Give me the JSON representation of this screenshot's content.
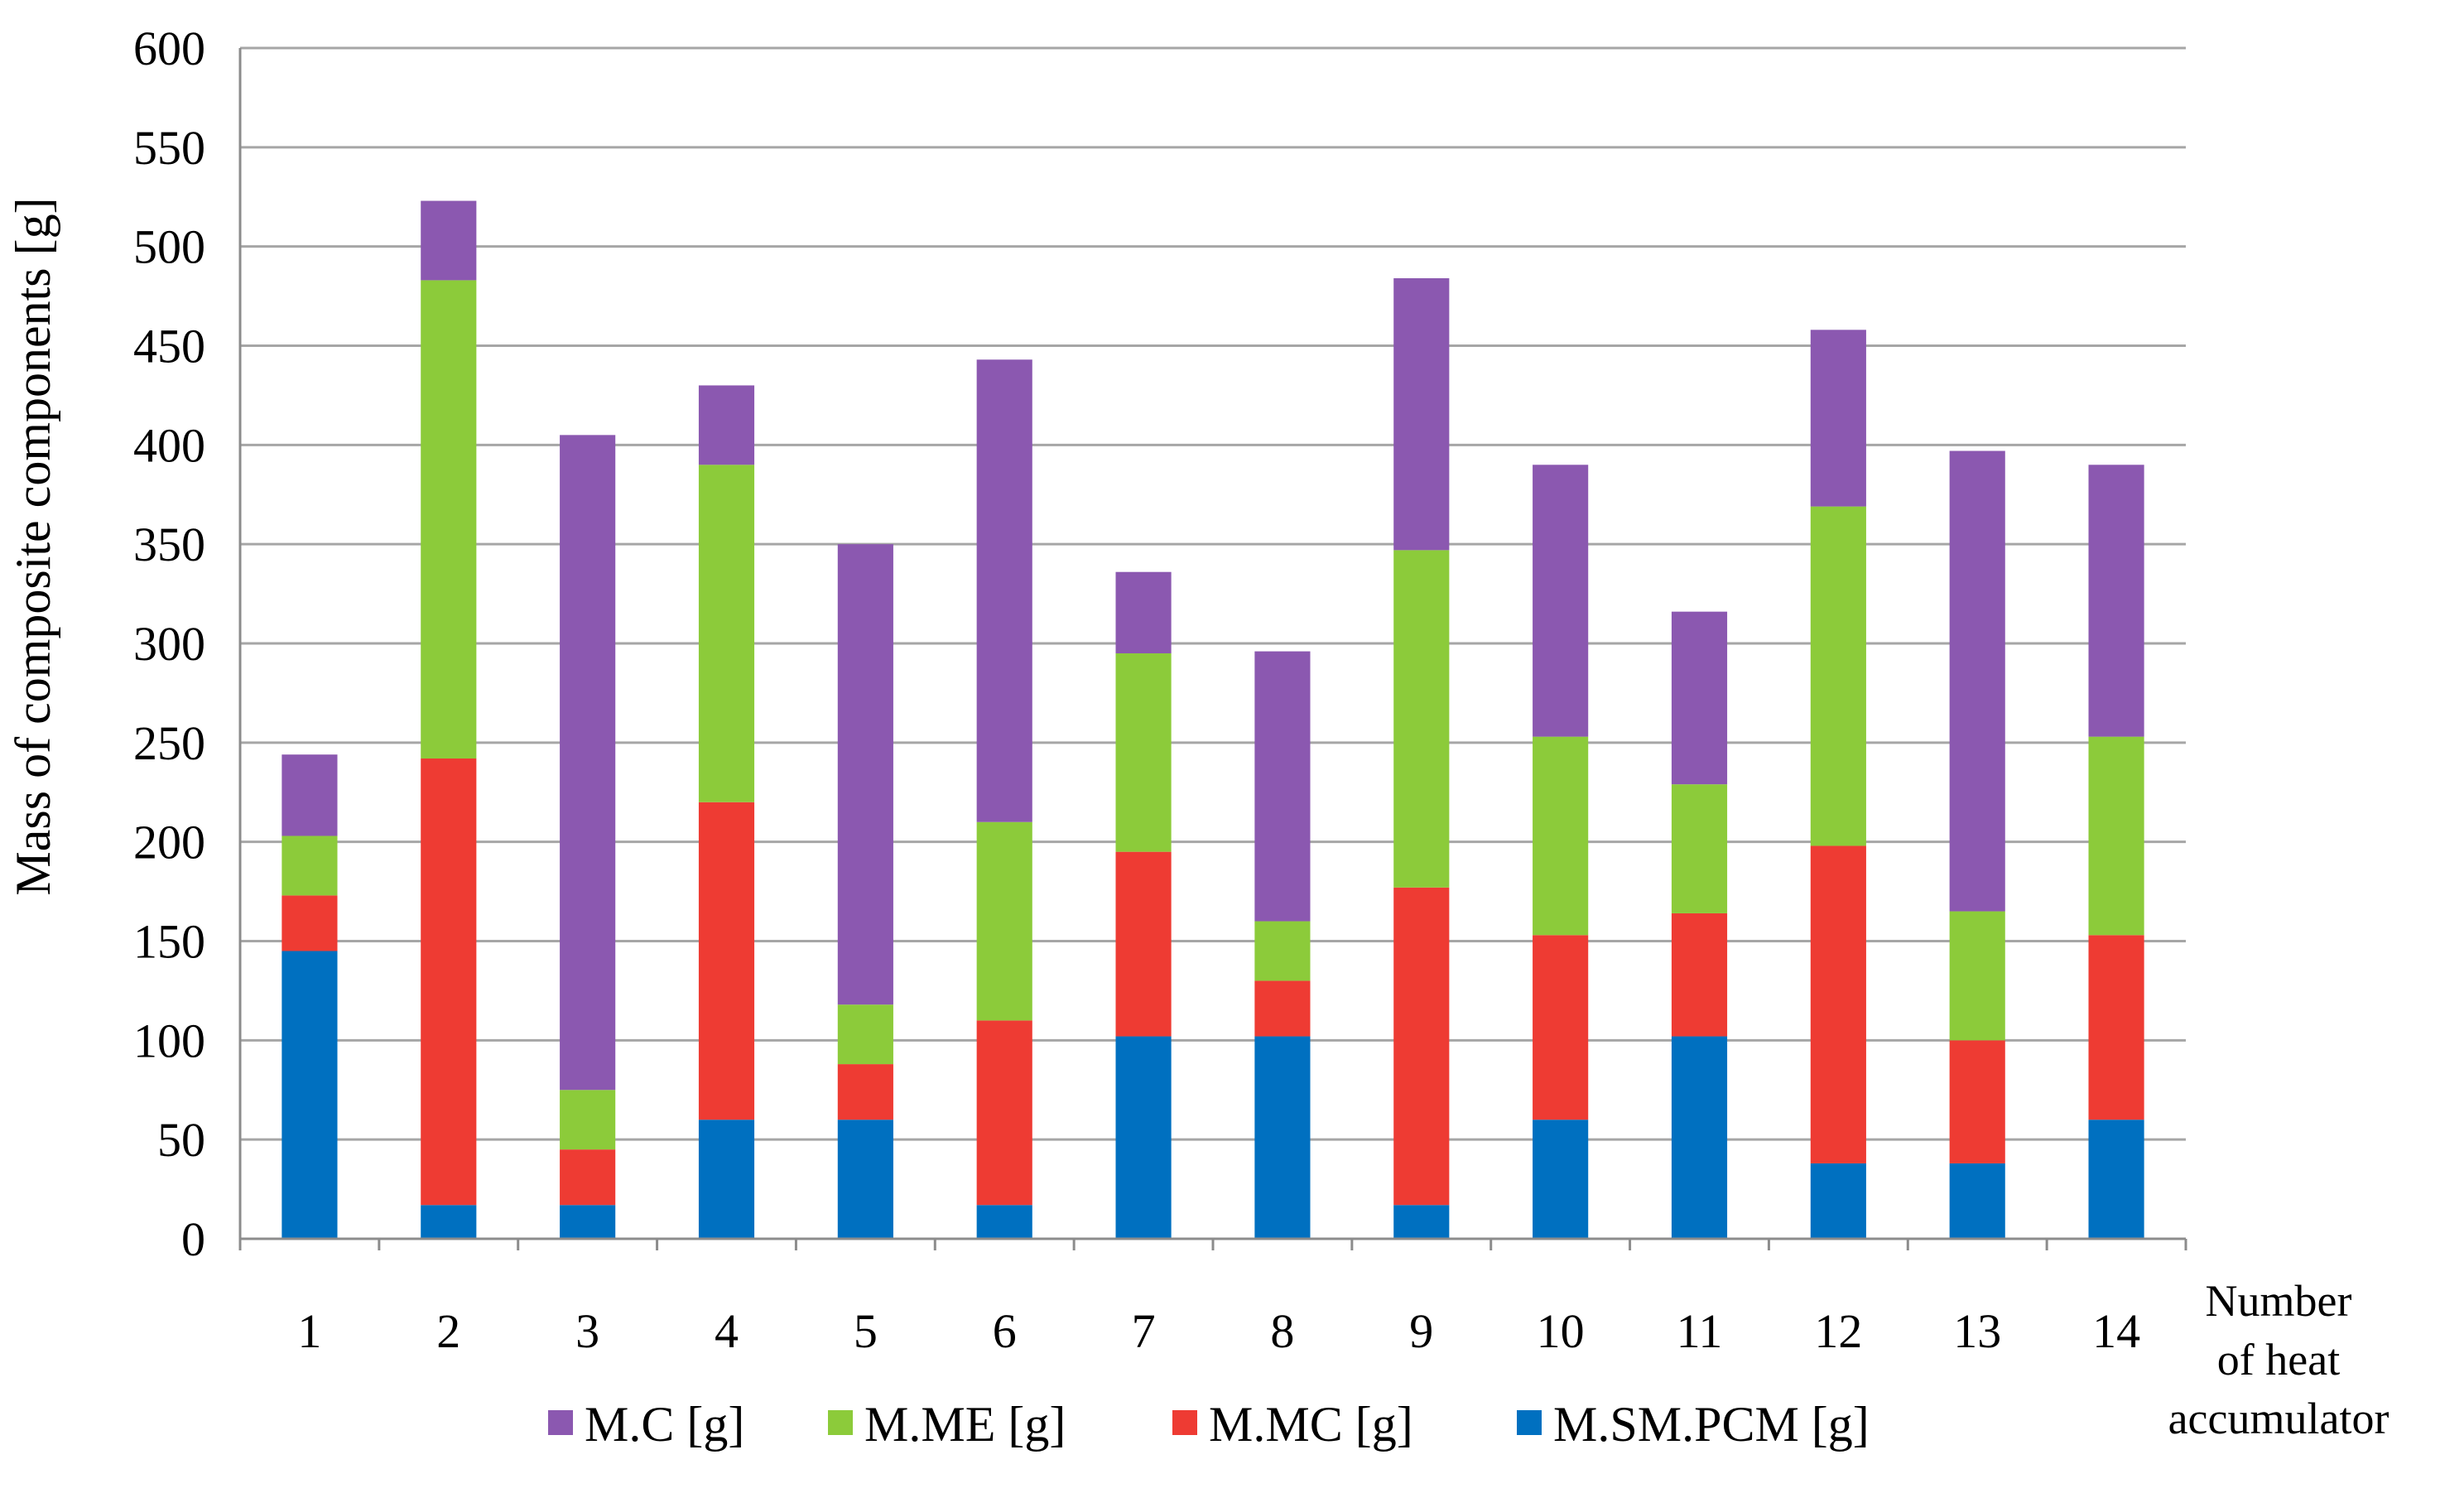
{
  "chart_data": {
    "type": "bar",
    "stacked": true,
    "title": "",
    "xlabel_lines": [
      "Number",
      "of heat",
      "accumulator"
    ],
    "ylabel": "Mass of composite components [g]",
    "ylim": [
      0,
      600
    ],
    "ytick_step": 50,
    "grid": true,
    "legend_position": "bottom",
    "categories": [
      "1",
      "2",
      "3",
      "4",
      "5",
      "6",
      "7",
      "8",
      "9",
      "10",
      "11",
      "12",
      "13",
      "14"
    ],
    "series": [
      {
        "name": "M.SM.PCM [g]",
        "color": "#0070C0",
        "values": [
          145,
          17,
          17,
          60,
          60,
          17,
          102,
          102,
          17,
          60,
          102,
          38,
          38,
          60
        ]
      },
      {
        "name": "M.MC [g]",
        "color": "#EE3B33",
        "values": [
          28,
          225,
          28,
          160,
          28,
          93,
          93,
          28,
          160,
          93,
          62,
          160,
          62,
          93
        ]
      },
      {
        "name": "M.ME [g]",
        "color": "#8CCB3A",
        "values": [
          30,
          241,
          30,
          170,
          30,
          100,
          100,
          30,
          170,
          100,
          65,
          171,
          65,
          100
        ]
      },
      {
        "name": "M.C [g]",
        "color": "#8B58B0",
        "values": [
          41,
          40,
          330,
          40,
          232,
          233,
          41,
          136,
          137,
          137,
          87,
          89,
          232,
          137
        ]
      }
    ],
    "legend_order": [
      "M.C [g]",
      "M.ME [g]",
      "M.MC [g]",
      "M.SM.PCM [g]"
    ]
  }
}
